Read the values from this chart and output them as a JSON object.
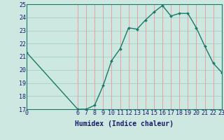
{
  "x": [
    0,
    6,
    7,
    8,
    9,
    10,
    11,
    12,
    13,
    14,
    15,
    16,
    17,
    18,
    19,
    20,
    21,
    22,
    23
  ],
  "y": [
    21.3,
    17.0,
    17.0,
    17.3,
    18.8,
    20.7,
    21.6,
    23.2,
    23.1,
    23.8,
    24.4,
    24.9,
    24.1,
    24.3,
    24.3,
    23.2,
    21.8,
    20.5,
    19.8
  ],
  "line_color": "#1a7a6a",
  "marker_color": "#1a7a6a",
  "bg_color": "#cce8e0",
  "hgrid_color": "#aad4cc",
  "vgrid_color": "#e8a0a0",
  "xlabel": "Humidex (Indice chaleur)",
  "xlim": [
    0,
    23
  ],
  "ylim": [
    17,
    25
  ],
  "yticks": [
    17,
    18,
    19,
    20,
    21,
    22,
    23,
    24,
    25
  ],
  "xticks": [
    0,
    6,
    7,
    8,
    9,
    10,
    11,
    12,
    13,
    14,
    15,
    16,
    17,
    18,
    19,
    20,
    21,
    22,
    23
  ],
  "tick_fontsize": 6,
  "label_fontsize": 7
}
